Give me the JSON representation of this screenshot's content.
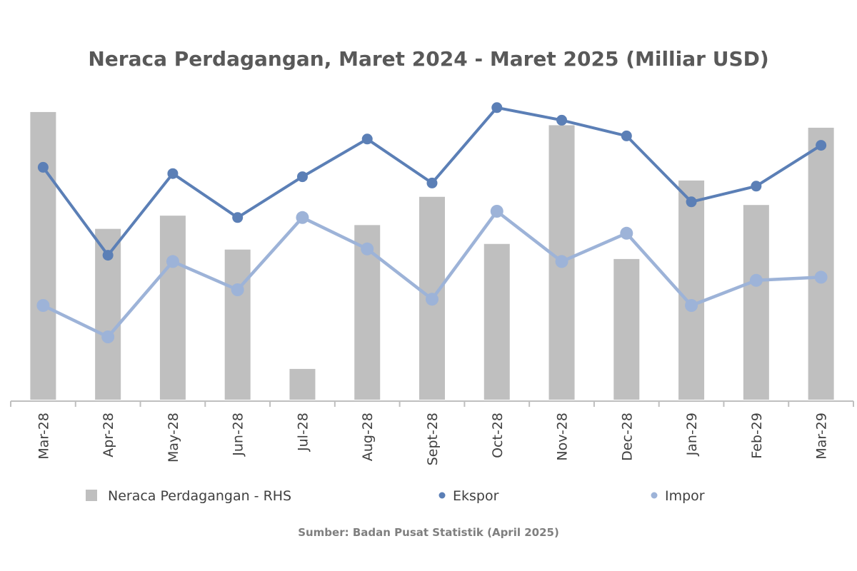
{
  "chart_data": {
    "type": "bar+line",
    "title": "Neraca Perdagangan, Maret 2024 - Maret 2025 (Milliar USD)",
    "categories": [
      "Mar-28",
      "Apr-28",
      "May-28",
      "Jun-28",
      "Jul-28",
      "Aug-28",
      "Sept-28",
      "Oct-28",
      "Nov-28",
      "Dec-28",
      "Jan-29",
      "Feb-29",
      "Mar-29"
    ],
    "series": [
      {
        "name": "Neraca Perdagangan - RHS",
        "kind": "bar",
        "axis": "right",
        "color": "#bfbfbf",
        "values": [
          4.58,
          2.72,
          2.93,
          2.39,
          0.49,
          2.78,
          3.23,
          2.48,
          4.37,
          2.24,
          3.49,
          3.1,
          4.33
        ]
      },
      {
        "name": "Ekspor",
        "kind": "line",
        "axis": "left",
        "color": "#5b7fb6",
        "values": [
          22.4,
          19.6,
          22.2,
          20.8,
          22.1,
          23.3,
          21.9,
          24.3,
          23.9,
          23.4,
          21.3,
          21.8,
          23.1
        ]
      },
      {
        "name": "Impor",
        "kind": "line",
        "axis": "left",
        "color": "#9db3d8",
        "values": [
          18.0,
          17.0,
          19.4,
          18.5,
          20.8,
          19.8,
          18.2,
          21.0,
          19.4,
          20.3,
          18.0,
          18.8,
          18.9
        ]
      }
    ],
    "left_axis_range": [
      15,
      25
    ],
    "right_axis_range": [
      0,
      5
    ],
    "legend_position": "bottom",
    "grid": false
  },
  "source_note": "Sumber: Badan Pusat Statistik (April 2025)"
}
